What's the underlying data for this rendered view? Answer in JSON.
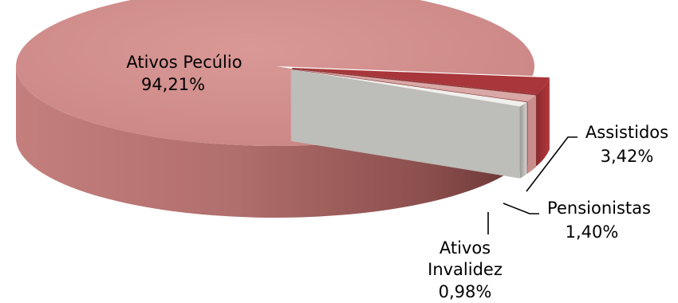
{
  "chart_data": {
    "type": "pie",
    "style": "3d-exploded",
    "title": "",
    "slices": [
      {
        "label": "Ativos Pecúlio",
        "value": 94.21,
        "value_text": "94,21%",
        "color": "#d08a8a"
      },
      {
        "label": "Assistidos",
        "value": 3.42,
        "value_text": "3,42%",
        "color": "#a8363a"
      },
      {
        "label": "Pensionistas",
        "value": 1.4,
        "value_text": "1,40%",
        "color": "#d8a8a6"
      },
      {
        "label": "Ativos Invalidez",
        "value": 0.98,
        "value_text": "0,98%",
        "color": "#e0e0de"
      }
    ],
    "legend": "none",
    "data_labels": "outside-with-leader-lines"
  }
}
